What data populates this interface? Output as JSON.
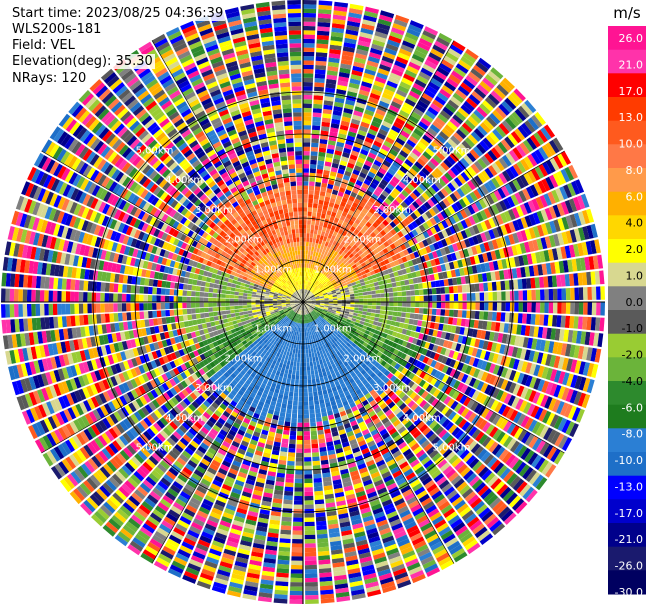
{
  "header": {
    "start_time": "Start time: 2023/08/25 04:36:39",
    "site": "WLS200s-181",
    "field": "Field: VEL",
    "elevation": "Elevation(deg): 35.30",
    "nrays": "NRays: 120"
  },
  "colorbar": {
    "unit": "m/s",
    "ticks": [
      "26.0",
      "21.0",
      "17.0",
      "13.0",
      "10.0",
      "8.0",
      "6.0",
      "4.0",
      "2.0",
      "1.0",
      "0.0",
      "-1.0",
      "-2.0",
      "-4.0",
      "-6.0",
      "-8.0",
      "-10.0",
      "-13.0",
      "-17.0",
      "-21.0",
      "-26.0",
      "-30.0"
    ],
    "colors": [
      "#ff1493",
      "#ff33aa",
      "#ff0000",
      "#ff3b00",
      "#ff5a1e",
      "#ff7846",
      "#ff9a4a",
      "#ffb000",
      "#ffd700",
      "#ffff00",
      "#d8d890",
      "#808080",
      "#5a5a5a",
      "#99cc33",
      "#6bb43a",
      "#2d8a2d",
      "#1e7c1e",
      "#2b7fd4",
      "#1e6fc8",
      "#0000ff",
      "#0000cc",
      "#00008b",
      "#1a1a6e",
      "#000060"
    ]
  },
  "rings": {
    "labels": [
      "1.00km",
      "2.00km",
      "3.00km",
      "4.00km",
      "5.00km"
    ]
  },
  "chart_data": {
    "type": "heatmap",
    "field": "VEL",
    "unit": "m/s",
    "n_rays": 120,
    "elevation_deg": 35.3,
    "range_rings_km": [
      1,
      2,
      3,
      4,
      5
    ],
    "color_scale_ticks": [
      26,
      21,
      17,
      13,
      10,
      8,
      6,
      4,
      2,
      1,
      0,
      -1,
      -2,
      -4,
      -6,
      -8,
      -10,
      -13,
      -17,
      -21,
      -26,
      -30
    ],
    "description_of_pattern": {
      "north_sector_0_2km": "positive 8-13 m/s (orange/red)",
      "center_band": "0 to 2 m/s (yellow/gray)",
      "south_sector_0_2km": "negative -8 to -10 m/s (blue)",
      "west_east_flanks": "-2 to -6 m/s (green)",
      "beyond_2.5km": "noisy random values across full scale"
    }
  }
}
